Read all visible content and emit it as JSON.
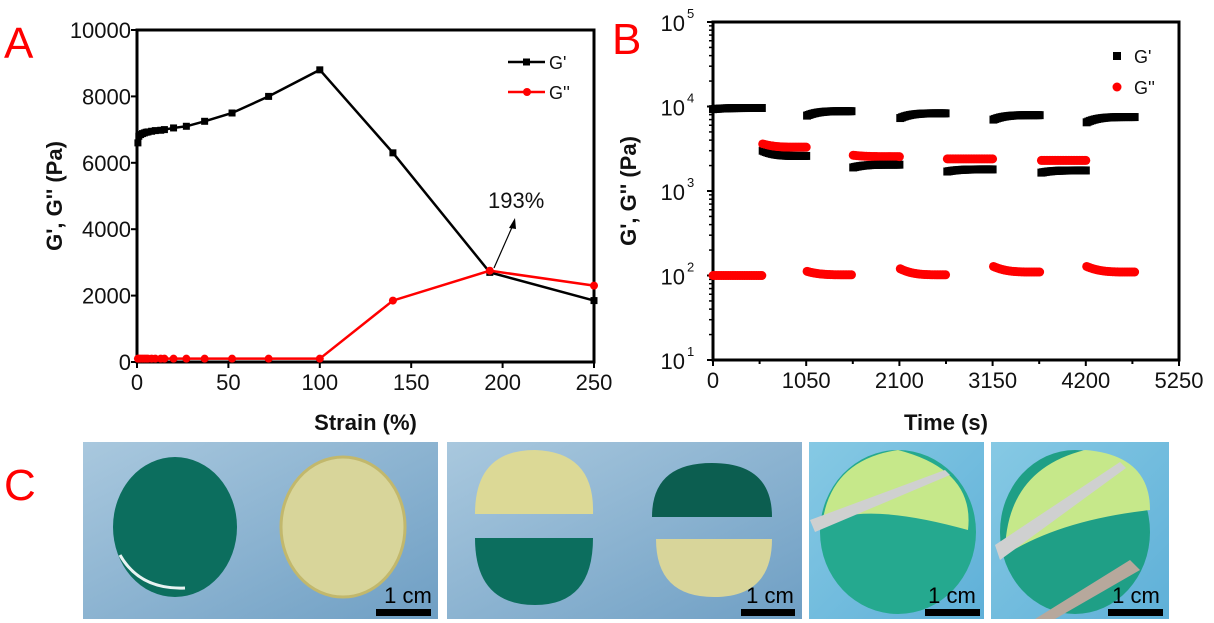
{
  "panels": {
    "a": "A",
    "b": "B",
    "c": "C"
  },
  "chart_data": [
    {
      "type": "line",
      "xlabel": "Strain (%)",
      "ylabel": "G', G'' (Pa)",
      "xlim": [
        0,
        250
      ],
      "ylim": [
        0,
        10000
      ],
      "xticks": [
        "0",
        "50",
        "100",
        "150",
        "200",
        "250"
      ],
      "yticks": [
        "0",
        "2000",
        "4000",
        "6000",
        "8000",
        "10000"
      ],
      "legend_position": "top-right",
      "annotation": "193%",
      "series": [
        {
          "name": "G'",
          "color": "#000000",
          "x": [
            0.5,
            1,
            2,
            3,
            4,
            5,
            6,
            8,
            10,
            13,
            15,
            20,
            27,
            37,
            52,
            72,
            100,
            140,
            193,
            250
          ],
          "y": [
            6600,
            6800,
            6850,
            6880,
            6900,
            6920,
            6930,
            6950,
            6970,
            6980,
            7000,
            7050,
            7100,
            7250,
            7500,
            8000,
            8800,
            6300,
            2700,
            1850
          ]
        },
        {
          "name": "G''",
          "color": "#ff0000",
          "x": [
            0.5,
            1,
            2,
            3,
            4,
            5,
            6,
            8,
            10,
            13,
            15,
            20,
            27,
            37,
            52,
            72,
            100,
            140,
            193,
            250
          ],
          "y": [
            100,
            100,
            100,
            100,
            100,
            100,
            100,
            100,
            100,
            100,
            100,
            100,
            100,
            100,
            100,
            100,
            100,
            1850,
            2750,
            2300
          ]
        }
      ]
    },
    {
      "type": "scatter",
      "xlabel": "Time (s)",
      "ylabel": "G', G'' (Pa)",
      "xlim": [
        0,
        5250
      ],
      "ylim": [
        10,
        100000
      ],
      "yscale": "log",
      "xticks": [
        "0",
        "1050",
        "2100",
        "3150",
        "4200",
        "5250"
      ],
      "yticks": [
        {
          "base": "10",
          "exp": "1"
        },
        {
          "base": "10",
          "exp": "2"
        },
        {
          "base": "10",
          "exp": "3"
        },
        {
          "base": "10",
          "exp": "4"
        },
        {
          "base": "10",
          "exp": "5"
        }
      ],
      "legend_position": "top-right",
      "series_names": [
        "G'",
        "G''"
      ],
      "colors": {
        "G'": "#000000",
        "G''": "#ff0000"
      },
      "segments": [
        {
          "t": [
            0,
            550
          ],
          "G1": [
            9300,
            9600
          ],
          "G2": [
            100,
            100
          ]
        },
        {
          "t": [
            560,
            1050
          ],
          "G1": [
            3000,
            2600
          ],
          "G2": [
            3600,
            3300
          ]
        },
        {
          "t": [
            1060,
            1560
          ],
          "G1": [
            7800,
            8800
          ],
          "G2": [
            112,
            102
          ]
        },
        {
          "t": [
            1580,
            2100
          ],
          "G1": [
            1900,
            2050
          ],
          "G2": [
            2650,
            2550
          ]
        },
        {
          "t": [
            2110,
            2620
          ],
          "G1": [
            7300,
            8300
          ],
          "G2": [
            120,
            102
          ]
        },
        {
          "t": [
            2640,
            3150
          ],
          "G1": [
            1700,
            1800
          ],
          "G2": [
            2400,
            2400
          ]
        },
        {
          "t": [
            3160,
            3680
          ],
          "G1": [
            7000,
            7900
          ],
          "G2": [
            128,
            110
          ]
        },
        {
          "t": [
            3700,
            4200
          ],
          "G1": [
            1650,
            1750
          ],
          "G2": [
            2300,
            2300
          ]
        },
        {
          "t": [
            4210,
            4750
          ],
          "G1": [
            6500,
            7500
          ],
          "G2": [
            128,
            110
          ]
        }
      ]
    }
  ],
  "photos": {
    "scale_bar_label": "1 cm"
  }
}
